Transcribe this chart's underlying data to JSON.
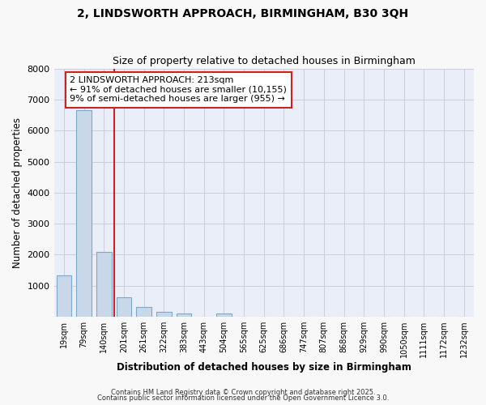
{
  "title_line1": "2, LINDSWORTH APPROACH, BIRMINGHAM, B30 3QH",
  "title_line2": "Size of property relative to detached houses in Birmingham",
  "xlabel": "Distribution of detached houses by size in Birmingham",
  "ylabel": "Number of detached properties",
  "categories": [
    "19sqm",
    "79sqm",
    "140sqm",
    "201sqm",
    "261sqm",
    "322sqm",
    "383sqm",
    "443sqm",
    "504sqm",
    "565sqm",
    "625sqm",
    "686sqm",
    "747sqm",
    "807sqm",
    "868sqm",
    "929sqm",
    "990sqm",
    "1050sqm",
    "1111sqm",
    "1172sqm",
    "1232sqm"
  ],
  "values": [
    1340,
    6650,
    2100,
    640,
    320,
    160,
    110,
    0,
    100,
    0,
    0,
    0,
    0,
    0,
    0,
    0,
    0,
    0,
    0,
    0,
    0
  ],
  "bar_color": "#c8d8e8",
  "bar_edge_color": "#7aaac8",
  "vline_x": 2.5,
  "vline_color": "#cc2222",
  "annotation_text": "2 LINDSWORTH APPROACH: 213sqm\n← 91% of detached houses are smaller (10,155)\n9% of semi-detached houses are larger (955) →",
  "annotation_box_color": "#ffffff",
  "annotation_box_edge": "#cc2222",
  "ylim": [
    0,
    8000
  ],
  "yticks": [
    0,
    1000,
    2000,
    3000,
    4000,
    5000,
    6000,
    7000,
    8000
  ],
  "grid_color": "#ccccdd",
  "background_color": "#eaeef8",
  "fig_background": "#f8f8f8",
  "footer_line1": "Contains HM Land Registry data © Crown copyright and database right 2025.",
  "footer_line2": "Contains public sector information licensed under the Open Government Licence 3.0."
}
